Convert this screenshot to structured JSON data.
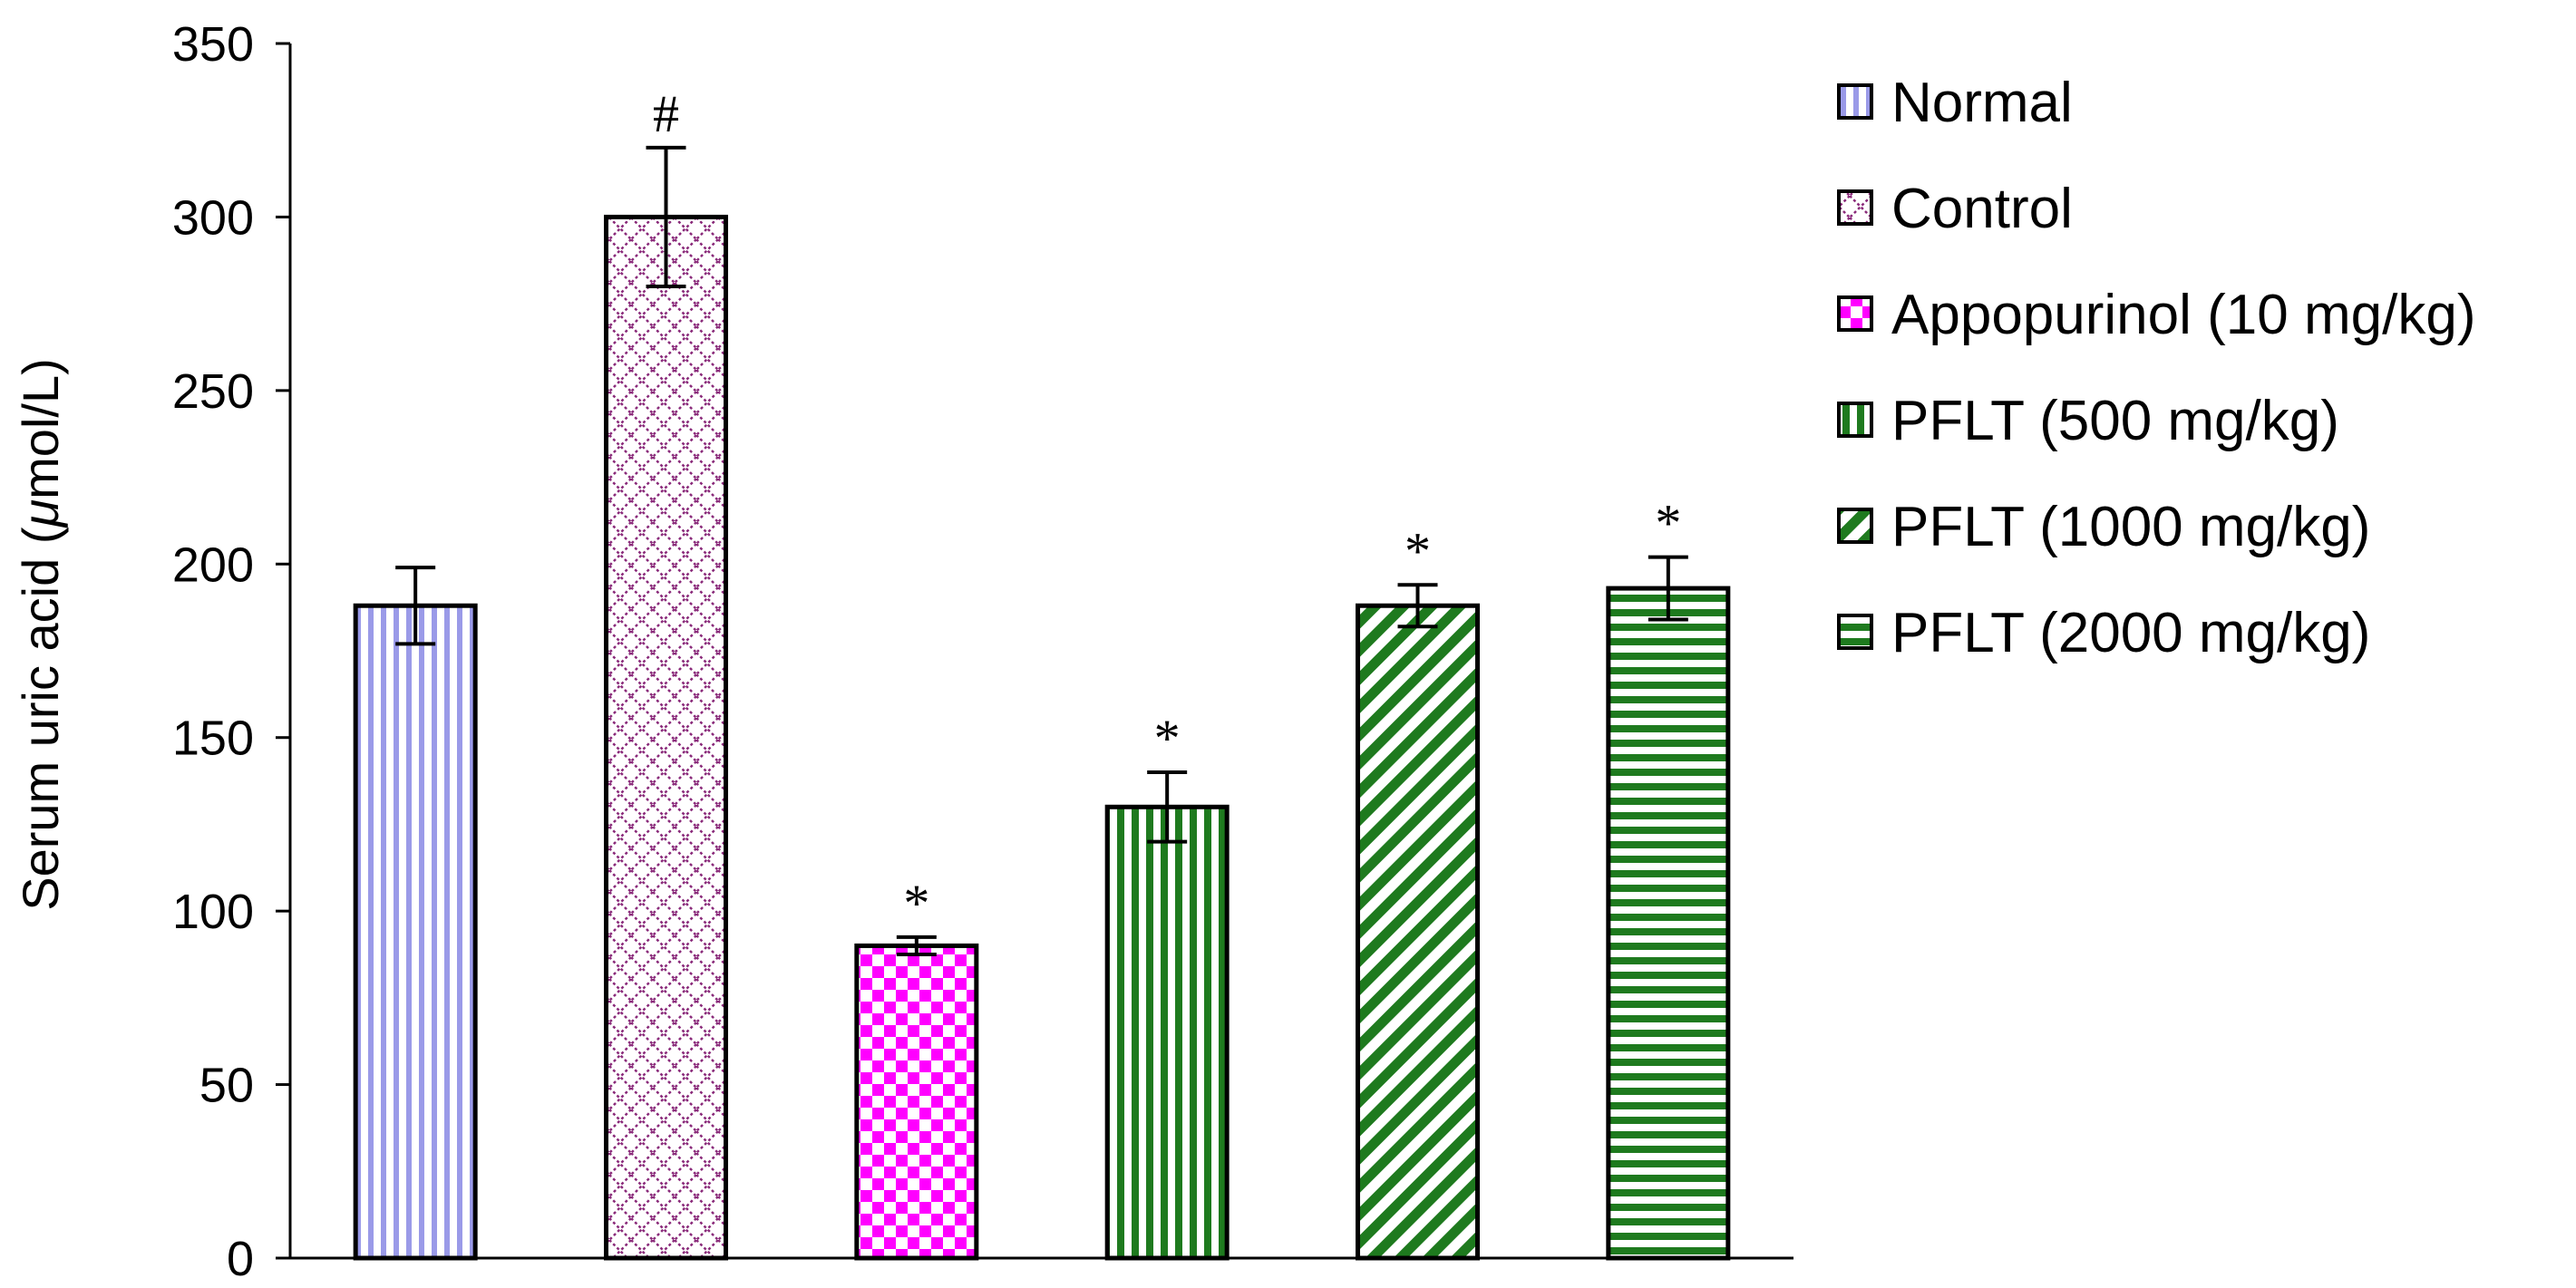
{
  "chart_data": {
    "type": "bar",
    "ylabel_prefix": "Serum uric acid (",
    "ylabel_mu": "μ",
    "ylabel_suffix": "mol/L)",
    "xlabel": "",
    "ylim": [
      0,
      350
    ],
    "yticks": [
      "0",
      "50",
      "100",
      "150",
      "200",
      "250",
      "300",
      "350"
    ],
    "grid": false,
    "legend_position": "right",
    "series": [
      {
        "name": "Normal",
        "value": 188,
        "error": 11,
        "sig": "",
        "pattern": "vertical-light",
        "color": "#9a9ae8"
      },
      {
        "name": "Control",
        "value": 300,
        "error": 20,
        "sig": "#",
        "pattern": "crosshatch-dotted",
        "color": "#8a2a7a"
      },
      {
        "name": "Appopurinol (10 mg/kg)",
        "value": 90,
        "error": 2.5,
        "sig": "*",
        "pattern": "checker",
        "color": "#ff00ff"
      },
      {
        "name": "PFLT (500 mg/kg)",
        "value": 130,
        "error": 10,
        "sig": "*",
        "pattern": "vertical-dark",
        "color": "#1e7a1e"
      },
      {
        "name": "PFLT (1000 mg/kg)",
        "value": 188,
        "error": 6,
        "sig": "*",
        "pattern": "diagonal",
        "color": "#1e7a1e"
      },
      {
        "name": "PFLT (2000 mg/kg)",
        "value": 193,
        "error": 9,
        "sig": "*",
        "pattern": "horizontal",
        "color": "#1e7a1e"
      }
    ]
  }
}
